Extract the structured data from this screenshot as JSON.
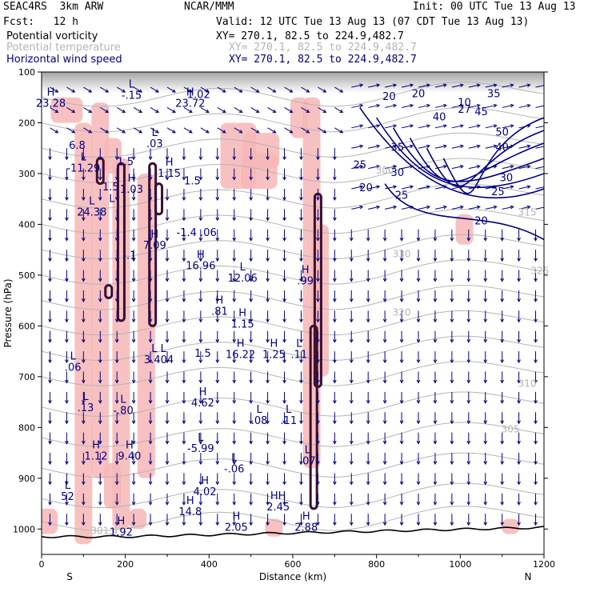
{
  "header": {
    "model": "SEAC4RS  3km ARW",
    "org": "NCAR/MMM",
    "init": "Init: 00 UTC Tue 13 Aug 13",
    "fcst": "Fcst:   12 h",
    "valid": "Valid: 12 UTC Tue 13 Aug 13 (07 CDT Tue 13 Aug 13)"
  },
  "legend": [
    {
      "label": "Potential vorticity",
      "xy": "XY= 270.1, 82.5 to 224.9,482.7",
      "color": "#000000"
    },
    {
      "label": "Potential temperature",
      "xy": "XY= 270.1, 82.5 to 224.9,482.7",
      "color": "#b4b4b4"
    },
    {
      "label": "Horizontal wind speed",
      "xy": "XY= 270.1, 82.5 to 224.9,482.7",
      "color": "#000080"
    }
  ],
  "chart_data": {
    "type": "cross-section",
    "xlabel": "Distance (km)",
    "ylabel": "Pressure (hPa)",
    "xlim": [
      0,
      1200
    ],
    "ylim": [
      1050,
      100
    ],
    "xticks": [
      0,
      200,
      400,
      600,
      800,
      1000,
      1200
    ],
    "yticks": [
      100,
      200,
      300,
      400,
      500,
      600,
      700,
      800,
      900,
      1000
    ],
    "end_labels": {
      "left": "S",
      "right": "N"
    },
    "pv_fill_color": "#f7b6b6",
    "pv_contour_color": "#3a1030",
    "theta_color": "#b4b4b4",
    "wind_color": "#000080",
    "theta_labels": [
      {
        "x": 820,
        "p": 300,
        "text": "300"
      },
      {
        "x": 1160,
        "p": 383,
        "text": "315"
      },
      {
        "x": 860,
        "p": 465,
        "text": "330"
      },
      {
        "x": 1190,
        "p": 498,
        "text": "325"
      },
      {
        "x": 860,
        "p": 580,
        "text": "320"
      },
      {
        "x": 1160,
        "p": 720,
        "text": "310"
      },
      {
        "x": 1120,
        "p": 810,
        "text": "305"
      },
      {
        "x": 150,
        "p": 1010,
        "text": "301.4"
      }
    ],
    "wind_labels": [
      {
        "x": 830,
        "p": 155,
        "text": "20"
      },
      {
        "x": 900,
        "p": 150,
        "text": "20"
      },
      {
        "x": 1010,
        "p": 167,
        "text": "10"
      },
      {
        "x": 1080,
        "p": 150,
        "text": "35"
      },
      {
        "x": 950,
        "p": 195,
        "text": "40"
      },
      {
        "x": 1010,
        "p": 180,
        "text": "27"
      },
      {
        "x": 1050,
        "p": 185,
        "text": "45"
      },
      {
        "x": 1100,
        "p": 225,
        "text": "50"
      },
      {
        "x": 850,
        "p": 255,
        "text": "35"
      },
      {
        "x": 760,
        "p": 290,
        "text": "25"
      },
      {
        "x": 850,
        "p": 305,
        "text": "30"
      },
      {
        "x": 775,
        "p": 335,
        "text": "20"
      },
      {
        "x": 860,
        "p": 350,
        "text": "25"
      },
      {
        "x": 1090,
        "p": 343,
        "text": "25"
      },
      {
        "x": 1110,
        "p": 315,
        "text": "30"
      },
      {
        "x": 1100,
        "p": 255,
        "text": "40"
      },
      {
        "x": 1050,
        "p": 400,
        "text": "20"
      }
    ],
    "hl_markers": [
      {
        "x": 22,
        "p": 165,
        "letter": "H",
        "value": "23.28",
        "label_dx": 0
      },
      {
        "x": 85,
        "p": 248,
        "letter": "",
        "value": "6.8",
        "label_dx": 0
      },
      {
        "x": 100,
        "p": 293,
        "letter": "L",
        "value": "-11.29",
        "label_dx": 0
      },
      {
        "x": 120,
        "p": 380,
        "letter": "L",
        "value": "24.38",
        "label_dx": 0
      },
      {
        "x": 168,
        "p": 375,
        "letter": "L",
        "value": "",
        "label_dx": 0
      },
      {
        "x": 215,
        "p": 150,
        "letter": "L",
        "value": "-.15",
        "label_dx": 0
      },
      {
        "x": 165,
        "p": 330,
        "letter": "",
        "value": "1.5",
        "label_dx": 0
      },
      {
        "x": 200,
        "p": 280,
        "letter": "",
        "value": "1.5",
        "label_dx": 0
      },
      {
        "x": 215,
        "p": 335,
        "letter": "H",
        "value": "1.03",
        "label_dx": 0
      },
      {
        "x": 270,
        "p": 245,
        "letter": "L",
        "value": ".03",
        "label_dx": 0
      },
      {
        "x": 305,
        "p": 303,
        "letter": "H",
        "value": "1.15",
        "label_dx": 0
      },
      {
        "x": 210,
        "p": 465,
        "letter": "",
        "value": "-.1",
        "label_dx": 0
      },
      {
        "x": 270,
        "p": 445,
        "letter": "H",
        "value": "7.09",
        "label_dx": 0
      },
      {
        "x": 355,
        "p": 165,
        "letter": "H",
        "value": "23.72",
        "label_dx": 0
      },
      {
        "x": 375,
        "p": 148,
        "letter": "",
        "value": "1.02",
        "label_dx": 0
      },
      {
        "x": 360,
        "p": 318,
        "letter": "",
        "value": "1.5",
        "label_dx": 0
      },
      {
        "x": 370,
        "p": 420,
        "letter": "",
        "value": "-1.4 .06",
        "label_dx": 0
      },
      {
        "x": 380,
        "p": 485,
        "letter": "H",
        "value": "16.96",
        "label_dx": 0
      },
      {
        "x": 425,
        "p": 575,
        "letter": "H",
        "value": ".81",
        "label_dx": 0
      },
      {
        "x": 480,
        "p": 600,
        "letter": "H",
        "value": "1.15",
        "label_dx": 0
      },
      {
        "x": 480,
        "p": 510,
        "letter": "L",
        "value": "12.06",
        "label_dx": 0
      },
      {
        "x": 630,
        "p": 515,
        "letter": "H",
        "value": ".99",
        "label_dx": 0
      },
      {
        "x": 75,
        "p": 685,
        "letter": "L",
        "value": ".06",
        "label_dx": 0
      },
      {
        "x": 280,
        "p": 670,
        "letter": "L L",
        "value": "3.404",
        "label_dx": 0
      },
      {
        "x": 385,
        "p": 658,
        "letter": "",
        "value": "1.5",
        "label_dx": 0
      },
      {
        "x": 475,
        "p": 660,
        "letter": "H",
        "value": "16.22",
        "label_dx": 0
      },
      {
        "x": 555,
        "p": 660,
        "letter": "H",
        "value": "1.25",
        "label_dx": 0
      },
      {
        "x": 615,
        "p": 660,
        "letter": "L",
        "value": ".11",
        "label_dx": 0
      },
      {
        "x": 105,
        "p": 765,
        "letter": "L",
        "value": ".13",
        "label_dx": 0
      },
      {
        "x": 195,
        "p": 770,
        "letter": "L",
        "value": "-.80",
        "label_dx": 0
      },
      {
        "x": 385,
        "p": 755,
        "letter": "H",
        "value": "4.62",
        "label_dx": 0
      },
      {
        "x": 520,
        "p": 790,
        "letter": "L",
        "value": ".08",
        "label_dx": 0
      },
      {
        "x": 590,
        "p": 790,
        "letter": "L",
        "value": ".11",
        "label_dx": 0
      },
      {
        "x": 130,
        "p": 860,
        "letter": "H",
        "value": "1.12",
        "label_dx": 0
      },
      {
        "x": 210,
        "p": 860,
        "letter": "H",
        "value": "9.40",
        "label_dx": 0
      },
      {
        "x": 380,
        "p": 845,
        "letter": "L",
        "value": "-5.99",
        "label_dx": 0
      },
      {
        "x": 460,
        "p": 885,
        "letter": "L",
        "value": "-.06",
        "label_dx": 0
      },
      {
        "x": 635,
        "p": 870,
        "letter": "L",
        "value": ".07",
        "label_dx": 0
      },
      {
        "x": 62,
        "p": 940,
        "letter": "L",
        "value": "52",
        "label_dx": 0
      },
      {
        "x": 390,
        "p": 930,
        "letter": "H",
        "value": "4.02",
        "label_dx": 0
      },
      {
        "x": 355,
        "p": 970,
        "letter": "H",
        "value": "14.8",
        "label_dx": 0
      },
      {
        "x": 190,
        "p": 1010,
        "letter": "H",
        "value": "1.92",
        "label_dx": 0
      },
      {
        "x": 465,
        "p": 1000,
        "letter": "H",
        "value": "2.05",
        "label_dx": 0
      },
      {
        "x": 565,
        "p": 960,
        "letter": "HH",
        "value": "2.45",
        "label_dx": 0
      },
      {
        "x": 632,
        "p": 1000,
        "letter": "H",
        "value": "2.88",
        "label_dx": 0
      }
    ]
  }
}
